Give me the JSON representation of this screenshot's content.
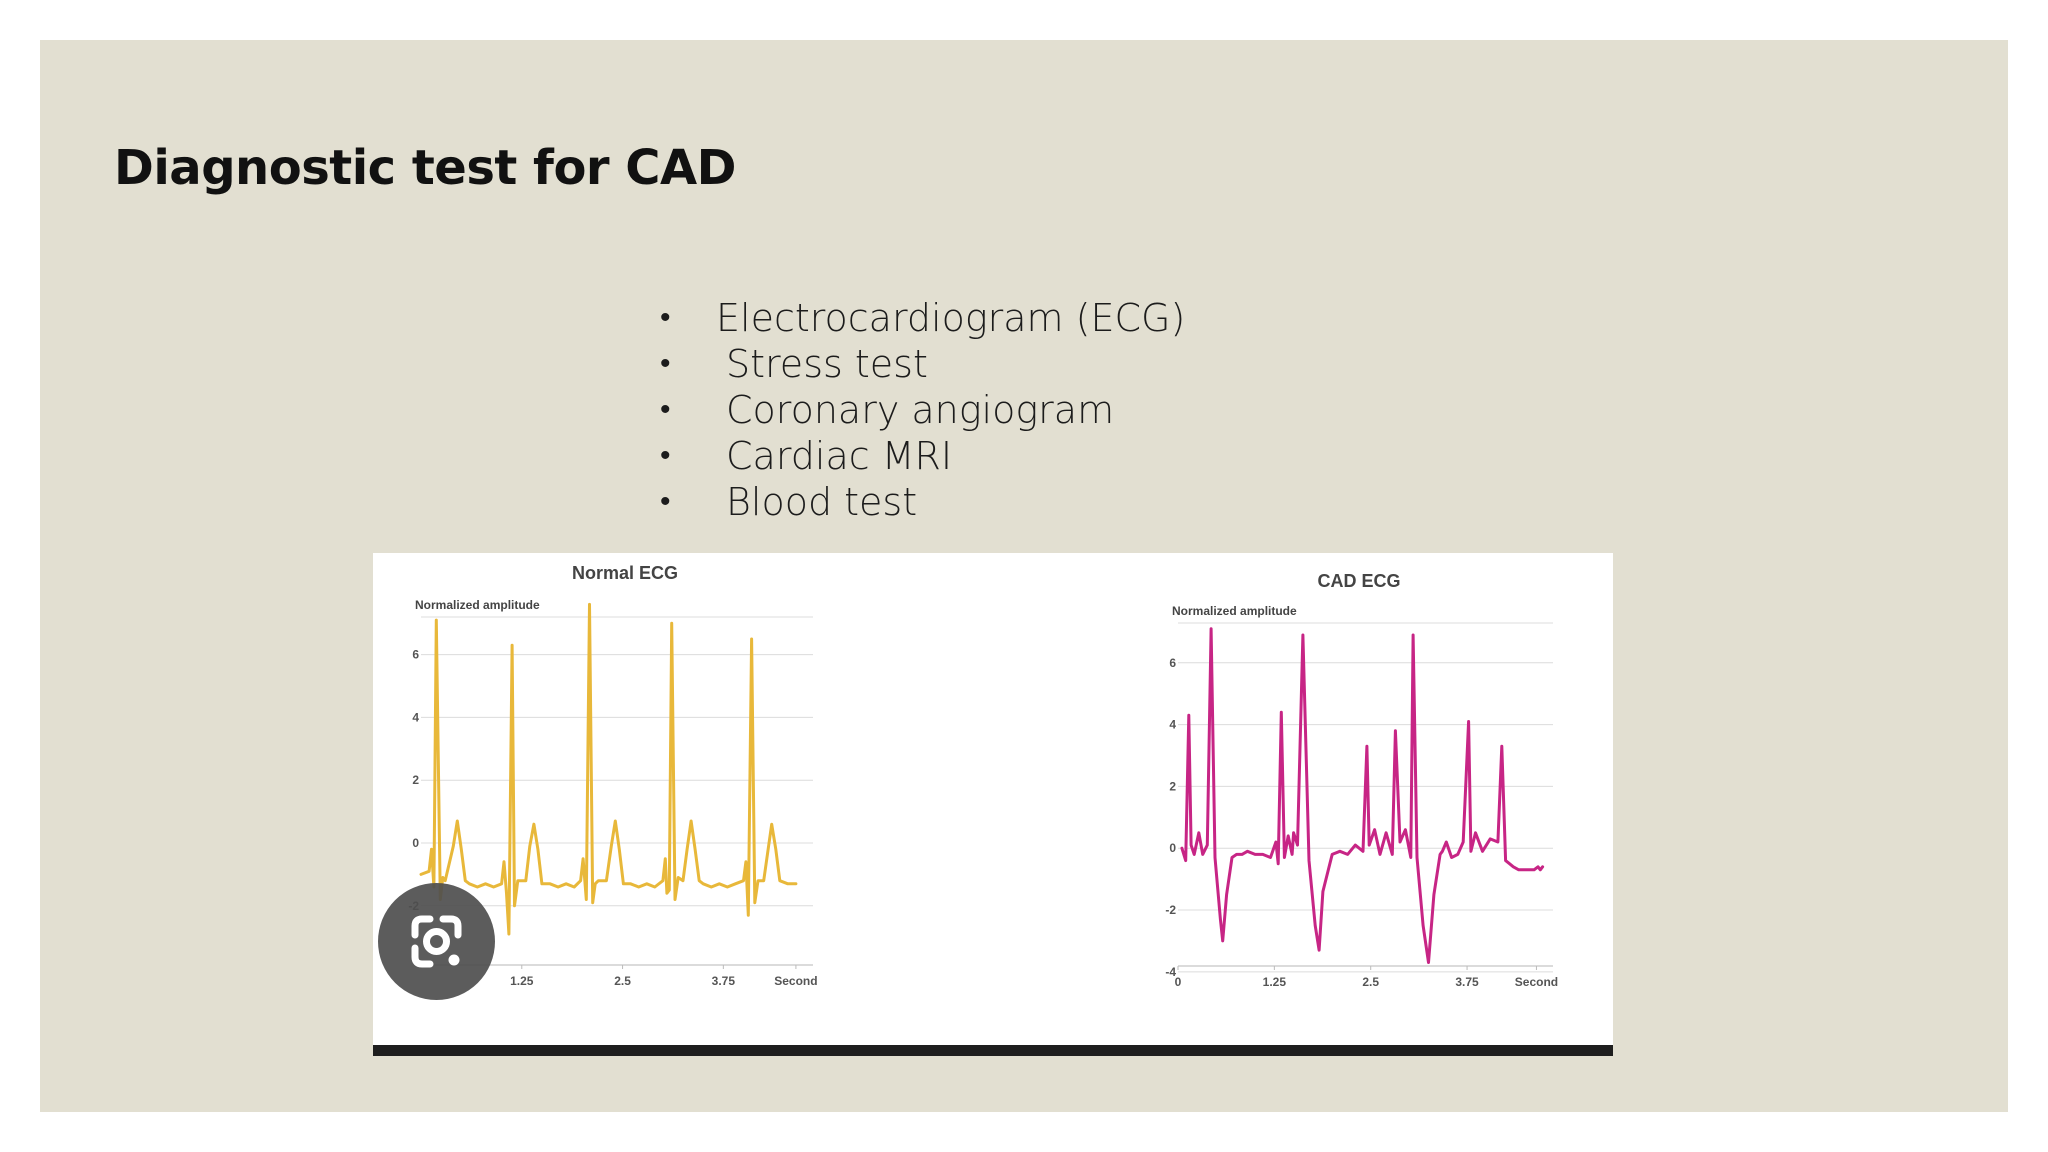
{
  "slide": {
    "title": "Diagnostic test for CAD",
    "bullets": [
      "Electrocardiogram (ECG)",
      "Stress test",
      "Coronary angiogram",
      "Cardiac MRI",
      "Blood test"
    ],
    "bullet_symbol": "•",
    "background_color": "#e2dfd1"
  },
  "overlay": {
    "icon": "google-lens-icon"
  },
  "chart_data": [
    {
      "type": "line",
      "title": "Normal ECG",
      "ylabel": "Normalized amplitude",
      "xlabel": "Second",
      "x_ticks": [
        {
          "v": 0,
          "label": ""
        },
        {
          "v": 1.25,
          "label": "1.25"
        },
        {
          "v": 2.5,
          "label": "2.5"
        },
        {
          "v": 3.75,
          "label": "3.75"
        },
        {
          "v": 4.65,
          "label": "Second"
        }
      ],
      "y_ticks": [
        {
          "v": 6,
          "label": "6"
        },
        {
          "v": 4,
          "label": "4"
        },
        {
          "v": 2,
          "label": "2"
        },
        {
          "v": 0,
          "label": "0"
        },
        {
          "v": -2,
          "label": "-2"
        }
      ],
      "xlim": [
        0,
        4.8
      ],
      "ylim": [
        -4.3,
        7.9
      ],
      "color": "#e8b83a",
      "series": [
        {
          "x": [
            0,
            0.1,
            0.13,
            0.16,
            0.19,
            0.24,
            0.27,
            0.3,
            0.4,
            0.45,
            0.5,
            0.55,
            0.6,
            0.7,
            0.8,
            0.9,
            1.0,
            1.03,
            1.06,
            1.09,
            1.13,
            1.16,
            1.2,
            1.3,
            1.35,
            1.4,
            1.45,
            1.5,
            1.6,
            1.7,
            1.8,
            1.9,
            1.98,
            2.01,
            2.05,
            2.09,
            2.13,
            2.16,
            2.2,
            2.3,
            2.36,
            2.41,
            2.46,
            2.51,
            2.6,
            2.7,
            2.8,
            2.9,
            3.0,
            3.03,
            3.05,
            3.08,
            3.11,
            3.15,
            3.19,
            3.25,
            3.3,
            3.35,
            3.4,
            3.45,
            3.5,
            3.6,
            3.7,
            3.8,
            3.9,
            4.0,
            4.03,
            4.06,
            4.1,
            4.14,
            4.18,
            4.25,
            4.3,
            4.35,
            4.4,
            4.45,
            4.55,
            4.65
          ],
          "values": [
            -1,
            -0.9,
            -0.2,
            -1.4,
            7.1,
            -1.8,
            -1.1,
            -1.2,
            -0.1,
            0.7,
            -0.2,
            -1.2,
            -1.3,
            -1.4,
            -1.3,
            -1.4,
            -1.3,
            -0.6,
            -1.6,
            -2.9,
            6.3,
            -2.0,
            -1.2,
            -1.2,
            -0.1,
            0.6,
            -0.2,
            -1.3,
            -1.3,
            -1.4,
            -1.3,
            -1.4,
            -1.2,
            -0.5,
            -1.8,
            7.6,
            -1.9,
            -1.3,
            -1.2,
            -1.2,
            -0.1,
            0.7,
            -0.2,
            -1.3,
            -1.3,
            -1.4,
            -1.3,
            -1.4,
            -1.2,
            -0.5,
            -1.6,
            -1.5,
            7.0,
            -1.8,
            -1.1,
            -1.2,
            -0.2,
            0.7,
            -0.2,
            -1.2,
            -1.3,
            -1.4,
            -1.3,
            -1.4,
            -1.3,
            -1.2,
            -0.6,
            -2.3,
            6.5,
            -1.9,
            -1.2,
            -1.2,
            -0.3,
            0.6,
            -0.2,
            -1.2,
            -1.3,
            -1.3
          ]
        }
      ]
    },
    {
      "type": "line",
      "title": "CAD ECG",
      "ylabel": "Normalized amplitude",
      "xlabel": "Second",
      "x_ticks": [
        {
          "v": 0,
          "label": "0"
        },
        {
          "v": 1.25,
          "label": "1.25"
        },
        {
          "v": 2.5,
          "label": "2.5"
        },
        {
          "v": 3.75,
          "label": "3.75"
        },
        {
          "v": 4.65,
          "label": "Second"
        }
      ],
      "y_ticks": [
        {
          "v": 6,
          "label": "6"
        },
        {
          "v": 4,
          "label": "4"
        },
        {
          "v": 2,
          "label": "2"
        },
        {
          "v": 0,
          "label": "0"
        },
        {
          "v": -2,
          "label": "-2"
        },
        {
          "v": -4,
          "label": "-4"
        }
      ],
      "xlim": [
        0,
        4.8
      ],
      "ylim": [
        -4.2,
        8.0
      ],
      "color": "#c72585",
      "series": [
        {
          "x": [
            0.05,
            0.1,
            0.14,
            0.17,
            0.21,
            0.27,
            0.32,
            0.38,
            0.43,
            0.48,
            0.55,
            0.58,
            0.63,
            0.7,
            0.76,
            0.83,
            0.9,
            1.0,
            1.1,
            1.2,
            1.27,
            1.3,
            1.34,
            1.38,
            1.43,
            1.48,
            1.5,
            1.55,
            1.62,
            1.7,
            1.78,
            1.83,
            1.88,
            2.0,
            2.1,
            2.2,
            2.3,
            2.4,
            2.45,
            2.48,
            2.55,
            2.62,
            2.7,
            2.78,
            2.82,
            2.88,
            2.95,
            3.02,
            3.05,
            3.1,
            3.18,
            3.25,
            3.32,
            3.4,
            3.43,
            3.48,
            3.55,
            3.63,
            3.7,
            3.77,
            3.8,
            3.86,
            3.95,
            4.05,
            4.15,
            4.2,
            4.25,
            4.3,
            4.35,
            4.42,
            4.48,
            4.55,
            4.62,
            4.67,
            4.7,
            4.73
          ],
          "values": [
            0,
            -0.4,
            4.3,
            0.1,
            -0.2,
            0.5,
            -0.2,
            0.1,
            7.1,
            -0.3,
            -2.3,
            -3.0,
            -1.5,
            -0.3,
            -0.2,
            -0.2,
            -0.1,
            -0.2,
            -0.2,
            -0.3,
            0.2,
            -0.5,
            4.4,
            -0.3,
            0.4,
            -0.2,
            0.5,
            0.1,
            6.9,
            -0.4,
            -2.5,
            -3.3,
            -1.4,
            -0.2,
            -0.1,
            -0.2,
            0.1,
            -0.1,
            3.3,
            0.1,
            0.6,
            -0.2,
            0.5,
            -0.2,
            3.8,
            0.2,
            0.6,
            -0.3,
            6.9,
            -0.3,
            -2.5,
            -3.7,
            -1.5,
            -0.2,
            -0.1,
            0.2,
            -0.3,
            -0.2,
            0.2,
            4.1,
            -0.1,
            0.5,
            -0.1,
            0.3,
            0.2,
            3.3,
            -0.4,
            -0.5,
            -0.6,
            -0.7,
            -0.7,
            -0.7,
            -0.7,
            -0.6,
            -0.7,
            -0.6
          ]
        }
      ]
    }
  ]
}
